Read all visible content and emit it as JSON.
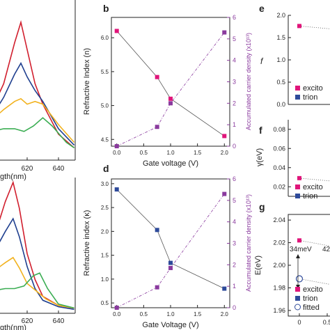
{
  "colors": {
    "red": "#d11f2e",
    "navy": "#1f3f8f",
    "orange": "#f2b21e",
    "green": "#3aad52",
    "pink": "#e0157a",
    "blue": "#2e4a9a",
    "purple": "#8a3a9e",
    "axis": "#222222"
  },
  "chart_data": [
    {
      "type": "line",
      "panel": "top-left",
      "xlabel": "gth(nm)",
      "xticks": [
        "620",
        "640"
      ],
      "series": [
        {
          "color": "red",
          "points": [
            [
              597,
              0.35
            ],
            [
              605,
              0.55
            ],
            [
              612,
              0.85
            ],
            [
              616,
              1.0
            ],
            [
              620,
              0.8
            ],
            [
              625,
              0.55
            ],
            [
              630,
              0.4
            ],
            [
              640,
              0.18
            ],
            [
              650,
              0.08
            ]
          ]
        },
        {
          "color": "navy",
          "points": [
            [
              597,
              0.3
            ],
            [
              605,
              0.45
            ],
            [
              612,
              0.62
            ],
            [
              616,
              0.7
            ],
            [
              620,
              0.6
            ],
            [
              625,
              0.5
            ],
            [
              630,
              0.42
            ],
            [
              640,
              0.22
            ],
            [
              650,
              0.1
            ]
          ]
        },
        {
          "color": "orange",
          "points": [
            [
              597,
              0.28
            ],
            [
              605,
              0.36
            ],
            [
              612,
              0.42
            ],
            [
              616,
              0.44
            ],
            [
              620,
              0.4
            ],
            [
              625,
              0.42
            ],
            [
              630,
              0.4
            ],
            [
              640,
              0.25
            ],
            [
              650,
              0.12
            ]
          ]
        },
        {
          "color": "green",
          "points": [
            [
              597,
              0.2
            ],
            [
              605,
              0.22
            ],
            [
              612,
              0.22
            ],
            [
              618,
              0.2
            ],
            [
              624,
              0.24
            ],
            [
              630,
              0.3
            ],
            [
              636,
              0.24
            ],
            [
              645,
              0.12
            ],
            [
              650,
              0.08
            ]
          ]
        }
      ]
    },
    {
      "type": "line",
      "panel": "bottom-left",
      "xlabel": "gth(nm)",
      "xticks": [
        "620",
        "640"
      ],
      "series": [
        {
          "color": "red",
          "points": [
            [
              597,
              0.5
            ],
            [
              606,
              0.85
            ],
            [
              611,
              1.0
            ],
            [
              615,
              0.8
            ],
            [
              620,
              0.45
            ],
            [
              625,
              0.25
            ],
            [
              630,
              0.12
            ],
            [
              640,
              0.05
            ],
            [
              650,
              0.03
            ]
          ]
        },
        {
          "color": "navy",
          "points": [
            [
              597,
              0.42
            ],
            [
              606,
              0.62
            ],
            [
              611,
              0.72
            ],
            [
              615,
              0.58
            ],
            [
              620,
              0.35
            ],
            [
              625,
              0.18
            ],
            [
              630,
              0.09
            ],
            [
              640,
              0.04
            ],
            [
              650,
              0.02
            ]
          ]
        },
        {
          "color": "orange",
          "points": [
            [
              597,
              0.3
            ],
            [
              606,
              0.38
            ],
            [
              611,
              0.42
            ],
            [
              615,
              0.34
            ],
            [
              620,
              0.22
            ],
            [
              626,
              0.16
            ],
            [
              632,
              0.1
            ],
            [
              640,
              0.05
            ],
            [
              650,
              0.03
            ]
          ]
        },
        {
          "color": "green",
          "points": [
            [
              597,
              0.16
            ],
            [
              606,
              0.18
            ],
            [
              612,
              0.18
            ],
            [
              618,
              0.2
            ],
            [
              624,
              0.28
            ],
            [
              628,
              0.3
            ],
            [
              633,
              0.18
            ],
            [
              640,
              0.06
            ],
            [
              650,
              0.03
            ]
          ]
        }
      ]
    },
    {
      "type": "scatter",
      "panel": "b",
      "label": "b",
      "xlabel": "Gate voltage (V)",
      "ylabel": "Refractive Index (n)",
      "ylabel_right": "Accumulated carrier density (x10¹³)",
      "x": [
        0.0,
        0.75,
        1.0,
        2.0
      ],
      "xticks": [
        "0.0",
        "0.5",
        "1.0",
        "1.5",
        "2.0"
      ],
      "yticks": [
        "4.5",
        "5.0",
        "5.5",
        "6.0"
      ],
      "yticks_right": [
        "0",
        "1",
        "2",
        "3",
        "4",
        "5",
        "6"
      ],
      "xlim": [
        -0.1,
        2.1
      ],
      "ylim": [
        4.4,
        6.3
      ],
      "ylim_right": [
        0,
        6
      ],
      "series": [
        {
          "axis": "left",
          "color": "pink",
          "values": [
            6.1,
            5.42,
            5.1,
            4.55
          ]
        },
        {
          "axis": "right",
          "color": "purple",
          "values": [
            0,
            0.9,
            2.0,
            5.3
          ]
        }
      ]
    },
    {
      "type": "scatter",
      "panel": "d",
      "label": "d",
      "xlabel": "Gate Voltage (V)",
      "ylabel": "Refractive index (κ)",
      "ylabel_right": "Accumulated carrier density (x10¹³)",
      "x": [
        0.0,
        0.75,
        1.0,
        2.0
      ],
      "xticks": [
        "0.0",
        "0.5",
        "1.0",
        "1.5",
        "2.0"
      ],
      "yticks": [
        "0.5",
        "1.0",
        "1.5",
        "2.0",
        "2.5",
        "3.0"
      ],
      "yticks_right": [
        "0",
        "1",
        "2",
        "3",
        "4",
        "5",
        "6"
      ],
      "xlim": [
        -0.1,
        2.1
      ],
      "ylim": [
        0.4,
        3.1
      ],
      "ylim_right": [
        0,
        6
      ],
      "series": [
        {
          "axis": "left",
          "color": "blue",
          "values": [
            2.88,
            2.03,
            1.34,
            0.8
          ]
        },
        {
          "axis": "right",
          "color": "purple",
          "values": [
            0,
            0.95,
            1.85,
            5.3
          ]
        }
      ]
    },
    {
      "type": "scatter",
      "panel": "e",
      "label": "e",
      "ylabel": "f",
      "yticks": [
        "0.0",
        "0.5",
        "1.0",
        "1.5",
        "2.0"
      ],
      "ylim": [
        0,
        2.0
      ],
      "legend": [
        "excito",
        "trion"
      ],
      "points": [
        {
          "series": "excito",
          "x": 0,
          "y": 1.76
        }
      ]
    },
    {
      "type": "scatter",
      "panel": "f",
      "label": "f",
      "ylabel": "γ(eV)",
      "yticks": [
        "0.02",
        "0.04",
        "0.06",
        "0.08"
      ],
      "ylim": [
        0.01,
        0.09
      ],
      "legend": [
        "excito",
        "trion"
      ],
      "points": [
        {
          "series": "excito",
          "x": 0,
          "y": 0.029
        }
      ]
    },
    {
      "type": "scatter",
      "panel": "g",
      "label": "g",
      "ylabel": "E(eV)",
      "xticks": [
        "0",
        "0.5"
      ],
      "yticks": [
        "1.96",
        "1.98",
        "2.00",
        "2.02",
        "2.04"
      ],
      "ylim": [
        1.955,
        2.045
      ],
      "legend": [
        "excito",
        "trion",
        "fitted"
      ],
      "annotations": [
        "34meV",
        "42"
      ],
      "points": [
        {
          "series": "excito",
          "x": 0,
          "y": 2.022
        },
        {
          "series": "fitted",
          "x": 0,
          "y": 1.988
        }
      ]
    }
  ]
}
